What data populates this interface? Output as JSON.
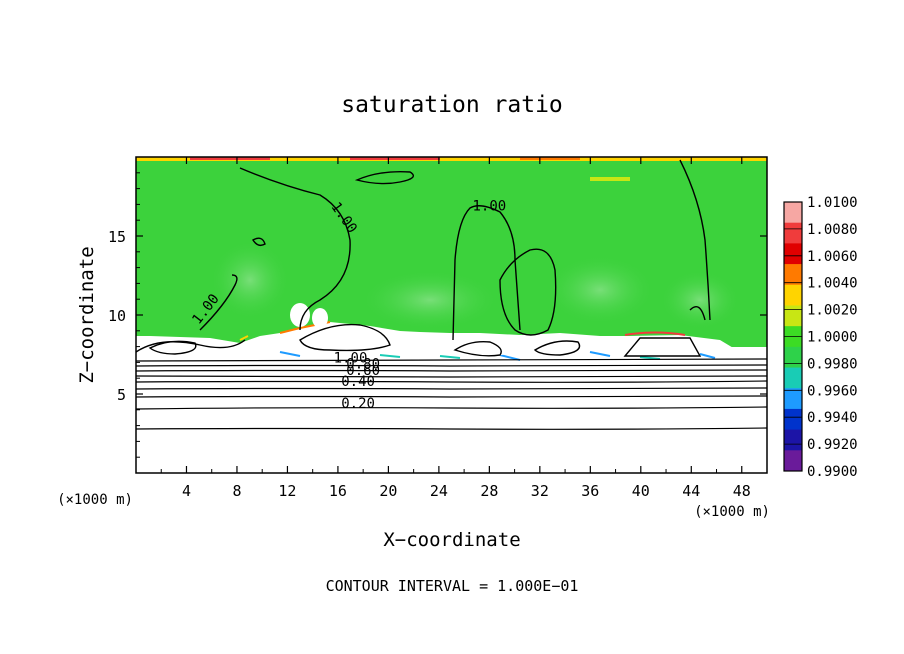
{
  "chart_data": {
    "type": "heatmap",
    "title": "saturation ratio",
    "xlabel": "X−coordinate",
    "ylabel": "Z−coordinate",
    "x_unit_label_left": "(×1000 m)",
    "x_unit_label_right": "(×1000 m)",
    "xlim": [
      0,
      50
    ],
    "ylim": [
      0,
      20
    ],
    "xticks": [
      4,
      8,
      12,
      16,
      20,
      24,
      28,
      32,
      36,
      40,
      44,
      48
    ],
    "yticks": [
      5,
      10,
      15
    ],
    "footer": "CONTOUR INTERVAL = 1.000E−01",
    "contour_labels": [
      {
        "text": "1.00",
        "x": 5.8,
        "z": 10.2,
        "rot": -52
      },
      {
        "text": "1.00",
        "x": 16.2,
        "z": 16.0,
        "rot": 55
      },
      {
        "text": "1.00",
        "x": 28.0,
        "z": 16.6,
        "rot": 0
      },
      {
        "text": "1.00",
        "x": 17.0,
        "z": 7.0,
        "rot": 0
      },
      {
        "text": "0.80",
        "x": 18.0,
        "z": 6.6,
        "rot": 0
      },
      {
        "text": "0.60",
        "x": 18.0,
        "z": 6.2,
        "rot": 0
      },
      {
        "text": "0.40",
        "x": 17.6,
        "z": 5.5,
        "rot": 0
      },
      {
        "text": "0.20",
        "x": 17.6,
        "z": 4.1,
        "rot": 0
      }
    ],
    "colorbar": {
      "labels": [
        "1.0100",
        "1.0080",
        "1.0060",
        "1.0040",
        "1.0020",
        "1.0000",
        "0.9980",
        "0.9960",
        "0.9940",
        "0.9920",
        "0.9900"
      ],
      "colors": [
        "#f6a7a3",
        "#f03c3c",
        "#e00000",
        "#ff7a00",
        "#ffd400",
        "#c8e614",
        "#3cdc24",
        "#2ed24a",
        "#19ccb5",
        "#1e9bff",
        "#0033cc",
        "#1c14a6",
        "#6a1b9a"
      ]
    },
    "field_colors": {
      "green": "#3cd23c",
      "light_green": "#58d860",
      "white": "#ffffff"
    }
  }
}
